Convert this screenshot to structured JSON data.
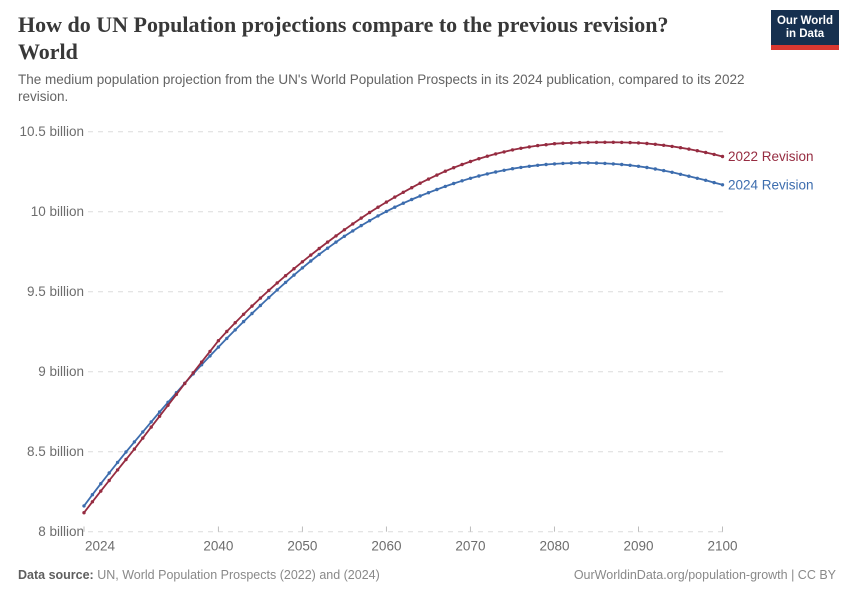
{
  "header": {
    "title_lines": [
      "How do UN Population projections compare to the previous revision?",
      "World"
    ],
    "subtitle": "The medium population projection from the UN's World Population Prospects in its 2024 publication, compared to its 2022 revision."
  },
  "logo": {
    "line1": "Our World",
    "line2": "in Data",
    "bg_color": "#16304f",
    "bar_color": "#d93831",
    "text_color": "#ffffff"
  },
  "footer": {
    "source_label": "Data source:",
    "source_text": "UN, World Population Prospects (2022) and (2024)",
    "attribution": "OurWorldinData.org/population-growth | CC BY"
  },
  "chart_data": {
    "type": "line",
    "title": "How do UN Population projections compare to the previous revision? World",
    "unit": "billion people",
    "grid": "dashed horizontal gridlines",
    "markers": "dot at every yearly data point",
    "legend": "series labels at right end of lines",
    "x_axis": {
      "domain": [
        2024,
        2100
      ],
      "ticks": [
        2024,
        2040,
        2050,
        2060,
        2070,
        2080,
        2090,
        2100
      ]
    },
    "y_axis": {
      "domain": [
        8,
        10.5
      ],
      "ticks": [
        8,
        8.5,
        9,
        9.5,
        10,
        10.5
      ],
      "tick_labels": [
        "8 billion",
        "8.5 billion",
        "9 billion",
        "9.5 billion",
        "10 billion",
        "10.5 billion"
      ]
    },
    "x": [
      2024,
      2025,
      2026,
      2027,
      2028,
      2029,
      2030,
      2031,
      2032,
      2033,
      2034,
      2035,
      2036,
      2037,
      2038,
      2039,
      2040,
      2041,
      2042,
      2043,
      2044,
      2045,
      2046,
      2047,
      2048,
      2049,
      2050,
      2051,
      2052,
      2053,
      2054,
      2055,
      2056,
      2057,
      2058,
      2059,
      2060,
      2061,
      2062,
      2063,
      2064,
      2065,
      2066,
      2067,
      2068,
      2069,
      2070,
      2071,
      2072,
      2073,
      2074,
      2075,
      2076,
      2077,
      2078,
      2079,
      2080,
      2081,
      2082,
      2083,
      2084,
      2085,
      2086,
      2087,
      2088,
      2089,
      2090,
      2091,
      2092,
      2093,
      2094,
      2095,
      2096,
      2097,
      2098,
      2099,
      2100
    ],
    "series": [
      {
        "name": "2022 Revision",
        "color": "#962c41",
        "values": [
          8.119,
          8.187,
          8.254,
          8.32,
          8.386,
          8.451,
          8.516,
          8.585,
          8.654,
          8.722,
          8.79,
          8.858,
          8.926,
          8.993,
          9.06,
          9.127,
          9.194,
          9.251,
          9.306,
          9.359,
          9.41,
          9.46,
          9.508,
          9.555,
          9.6,
          9.644,
          9.687,
          9.729,
          9.77,
          9.81,
          9.849,
          9.887,
          9.924,
          9.96,
          9.995,
          10.028,
          10.06,
          10.091,
          10.121,
          10.15,
          10.178,
          10.204,
          10.229,
          10.253,
          10.275,
          10.295,
          10.314,
          10.331,
          10.347,
          10.361,
          10.374,
          10.386,
          10.396,
          10.405,
          10.413,
          10.419,
          10.425,
          10.428,
          10.43,
          10.432,
          10.433,
          10.434,
          10.434,
          10.434,
          10.433,
          10.432,
          10.43,
          10.426,
          10.421,
          10.415,
          10.408,
          10.4,
          10.391,
          10.381,
          10.37,
          10.358,
          10.345
        ]
      },
      {
        "name": "2024 Revision",
        "color": "#3d6dae",
        "values": [
          8.161,
          8.231,
          8.3,
          8.367,
          8.433,
          8.498,
          8.561,
          8.624,
          8.686,
          8.748,
          8.809,
          8.869,
          8.928,
          8.986,
          9.043,
          9.099,
          9.154,
          9.208,
          9.261,
          9.313,
          9.364,
          9.414,
          9.463,
          9.511,
          9.558,
          9.604,
          9.649,
          9.692,
          9.733,
          9.772,
          9.81,
          9.846,
          9.88,
          9.913,
          9.944,
          9.974,
          10.002,
          10.028,
          10.053,
          10.076,
          10.098,
          10.119,
          10.139,
          10.158,
          10.176,
          10.193,
          10.209,
          10.223,
          10.236,
          10.248,
          10.259,
          10.269,
          10.277,
          10.284,
          10.29,
          10.295,
          10.299,
          10.302,
          10.304,
          10.305,
          10.305,
          10.304,
          10.302,
          10.299,
          10.295,
          10.29,
          10.284,
          10.276,
          10.267,
          10.257,
          10.246,
          10.234,
          10.222,
          10.209,
          10.196,
          10.182,
          10.168
        ]
      }
    ]
  }
}
